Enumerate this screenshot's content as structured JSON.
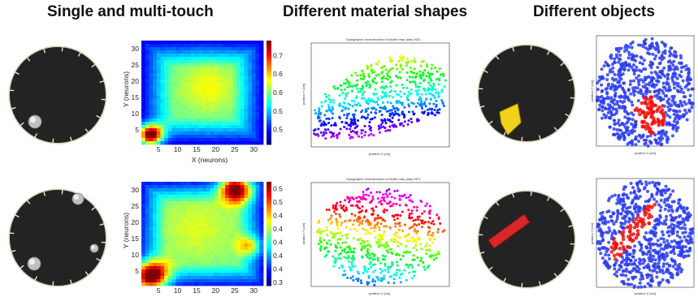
{
  "headings": {
    "left": "Single and multi-touch",
    "middle": "Different material shapes",
    "right": "Different objects"
  },
  "heatmaps": [
    {
      "xlabel": "X (neurons)",
      "ylabel": "Y (neurons)",
      "xticks": [
        "5",
        "10",
        "15",
        "20",
        "25",
        "30"
      ],
      "yticks": [
        "5",
        "10",
        "15",
        "20",
        "25",
        "30"
      ],
      "colorbar_ticks": [
        "0.7",
        "0.65",
        "0.6",
        "0.55",
        "0.5"
      ],
      "colorbar_range": [
        0.46,
        0.74
      ]
    },
    {
      "xlabel": "",
      "ylabel": "Y (neurons)",
      "xticks": [
        "5",
        "10",
        "15",
        "20",
        "25",
        "30"
      ],
      "yticks": [
        "5",
        "10",
        "15",
        "20",
        "25",
        "30"
      ],
      "colorbar_ticks": [
        "0.52",
        "0.5",
        "0.48",
        "0.46",
        "0.44",
        "0.42",
        "0.4",
        "0.38"
      ],
      "colorbar_range": [
        0.375,
        0.53
      ]
    }
  ],
  "topo_plots": [
    {
      "title": "topographic reconstruction of tactile map (step #32)",
      "xlabel": "position X [cm]",
      "ylabel": "position Y [cm]"
    },
    {
      "title": "topographic reconstruction of tactile map (step #57)",
      "xlabel": "position X [cm]",
      "ylabel": "position Y [cm]"
    }
  ],
  "object_plots": [
    {
      "xlabel": "position X [cm]",
      "ylabel": "position Y [cm]"
    },
    {
      "xlabel": "position X [cm]",
      "ylabel": "position Y [cm]"
    }
  ],
  "colors": {
    "board": "#232323",
    "board_rim": "#d9cfb6",
    "object_yellow": "#f2d21a",
    "object_red": "#d8262a",
    "blue_points": "#2b3df0",
    "red_points": "#f01010"
  }
}
